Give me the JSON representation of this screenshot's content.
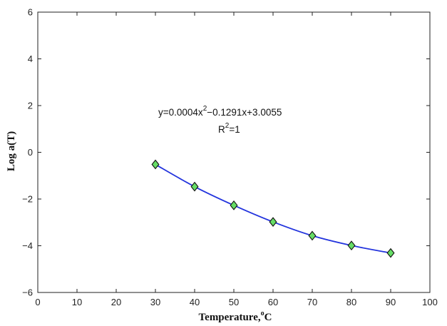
{
  "chart_data": {
    "type": "line",
    "xlabel": "Temperature,",
    "xlabel_unit_sup": "o",
    "xlabel_unit": "C",
    "ylabel": "Log a(T)",
    "xlim": [
      0,
      100
    ],
    "ylim": [
      -6,
      6
    ],
    "x_ticks": [
      0,
      10,
      20,
      30,
      40,
      50,
      60,
      70,
      80,
      90,
      100
    ],
    "y_ticks": [
      -6,
      -4,
      -2,
      0,
      2,
      4,
      6
    ],
    "grid": false,
    "x": [
      30,
      40,
      50,
      60,
      70,
      80,
      90
    ],
    "series": [
      {
        "values": [
          -0.52,
          -1.47,
          -2.27,
          -2.98,
          -3.57,
          -3.99,
          -4.31
        ],
        "line_color": "#2233dd",
        "marker": "diamond",
        "marker_color": "#66dd66"
      }
    ],
    "fit": {
      "coefficients": [
        0.0004,
        -0.1291,
        3.0055
      ]
    },
    "annotation": {
      "equation_part1": "y=0.0004x",
      "equation_sup": "2",
      "equation_part2": "−0.1291x+3.0055",
      "r2_label": "R",
      "r2_sup": "2",
      "r2_value": "=1"
    }
  }
}
